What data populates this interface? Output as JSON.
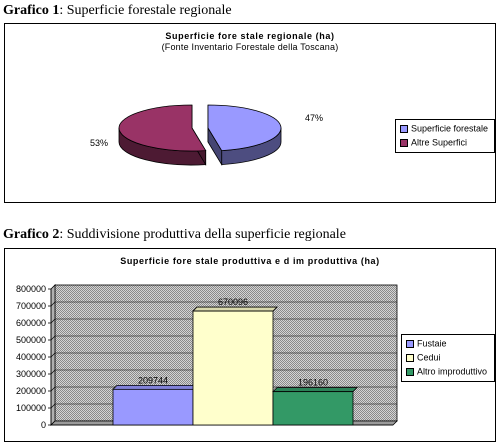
{
  "captions": {
    "chart1": {
      "prefix": "Grafico 1",
      "text": ": Superficie forestale regionale"
    },
    "chart2": {
      "prefix": "Grafico 2",
      "text": ":  Suddivisione produttiva della superficie regionale"
    }
  },
  "chart_data": [
    {
      "type": "pie",
      "title": "Superficie fore stale regionale (ha)",
      "subtitle": "(Fonte Inventario Forestale della Toscana)",
      "labels": [
        "Superficie forestale",
        "Altre Superfici"
      ],
      "values": [
        47,
        53
      ],
      "value_labels": [
        "47%",
        "53%"
      ],
      "colors": [
        "#9999ff",
        "#993366"
      ],
      "legend": "right"
    },
    {
      "type": "bar",
      "title": "Superficie fore stale produttiva e d im produttiva (ha)",
      "series": [
        {
          "name": "Fustaie",
          "value": 209744,
          "label": "209744",
          "color": "#9999ff"
        },
        {
          "name": "Cedui",
          "value": 670096,
          "label": "670096",
          "color": "#ffffcc"
        },
        {
          "name": "Altro improduttivo",
          "value": 196160,
          "label": "196160",
          "color": "#339966"
        }
      ],
      "y_ticks": [
        "800000",
        "700000",
        "600000",
        "500000",
        "400000",
        "300000",
        "200000",
        "100000",
        "0"
      ],
      "ylim": [
        0,
        800000
      ],
      "grid": true,
      "legend": "right"
    }
  ]
}
